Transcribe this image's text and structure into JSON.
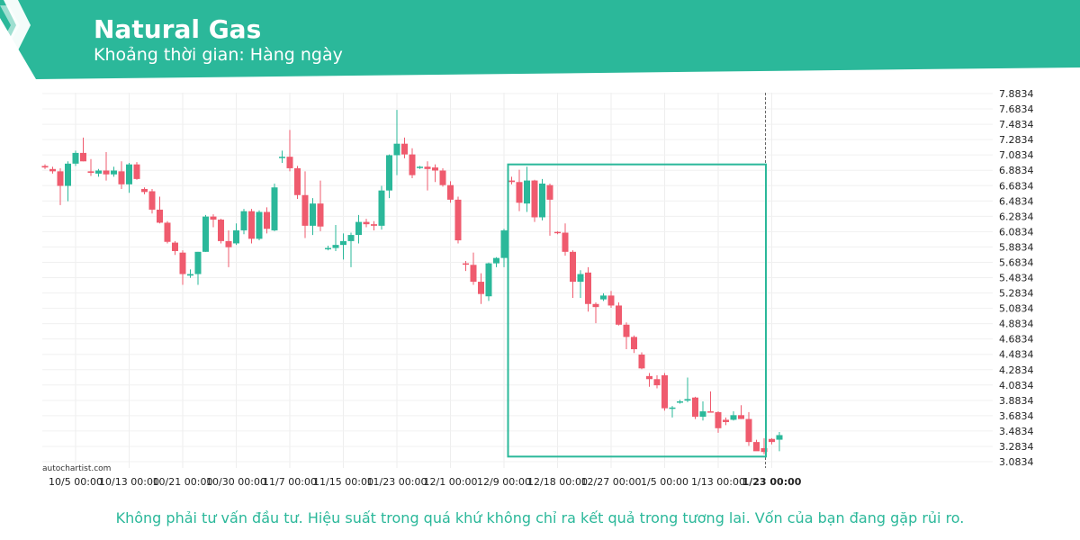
{
  "header": {
    "title": "Natural Gas",
    "subtitle": "Khoảng thời gian: Hàng ngày",
    "brand_color": "#2bb89a"
  },
  "footer": {
    "watermark": "autochartist.com",
    "disclaimer": "Không phải tư vấn đầu tư. Hiệu suất trong quá khứ không chỉ ra kết quả trong tương lai. Vốn của bạn đang gặp rủi ro."
  },
  "chart_data": {
    "type": "candlestick",
    "title": "Natural Gas",
    "up_color": "#2bb89a",
    "down_color": "#ef5b6e",
    "grid": true,
    "ylim": [
      3.0834,
      7.8834
    ],
    "y_ticks": [
      "7.8834",
      "7.6834",
      "7.4834",
      "7.2834",
      "7.0834",
      "6.8834",
      "6.6834",
      "6.4834",
      "6.2834",
      "6.0834",
      "5.8834",
      "5.6834",
      "5.4834",
      "5.2834",
      "5.0834",
      "4.8834",
      "4.6834",
      "4.4834",
      "4.2834",
      "4.0834",
      "3.8834",
      "3.6834",
      "3.4834",
      "3.2834",
      "3.0834"
    ],
    "x_ticks": [
      {
        "label": "10/5 00:00",
        "index": 4
      },
      {
        "label": "10/13 00:00",
        "index": 11
      },
      {
        "label": "10/21 00:00",
        "index": 18
      },
      {
        "label": "10/30 00:00",
        "index": 25
      },
      {
        "label": "11/7 00:00",
        "index": 32
      },
      {
        "label": "11/15 00:00",
        "index": 39
      },
      {
        "label": "11/23 00:00",
        "index": 46
      },
      {
        "label": "12/1 00:00",
        "index": 53
      },
      {
        "label": "12/9 00:00",
        "index": 60
      },
      {
        "label": "12/18 00:00",
        "index": 67
      },
      {
        "label": "12/27 00:00",
        "index": 74
      },
      {
        "label": "1/5 00:00",
        "index": 81
      },
      {
        "label": "1/13 00:00",
        "index": 88
      },
      {
        "label": "1/23 00:00",
        "index": 95,
        "bold": true
      }
    ],
    "pattern_box": {
      "start_index": 61,
      "end_index": 94,
      "high": 6.96,
      "low": 3.15
    },
    "current_index": 95,
    "candles": [
      {
        "o": 6.94,
        "h": 6.96,
        "l": 6.9,
        "c": 6.92
      },
      {
        "o": 6.9,
        "h": 6.93,
        "l": 6.84,
        "c": 6.87
      },
      {
        "o": 6.87,
        "h": 6.91,
        "l": 6.43,
        "c": 6.68
      },
      {
        "o": 6.68,
        "h": 7.0,
        "l": 6.48,
        "c": 6.97
      },
      {
        "o": 6.97,
        "h": 7.14,
        "l": 6.94,
        "c": 7.11
      },
      {
        "o": 7.11,
        "h": 7.31,
        "l": 7.0,
        "c": 7.0
      },
      {
        "o": 6.87,
        "h": 7.03,
        "l": 6.81,
        "c": 6.85
      },
      {
        "o": 6.84,
        "h": 6.9,
        "l": 6.8,
        "c": 6.88
      },
      {
        "o": 6.88,
        "h": 7.12,
        "l": 6.75,
        "c": 6.83
      },
      {
        "o": 6.83,
        "h": 6.93,
        "l": 6.8,
        "c": 6.88
      },
      {
        "o": 6.87,
        "h": 7.0,
        "l": 6.64,
        "c": 6.7
      },
      {
        "o": 6.7,
        "h": 6.98,
        "l": 6.59,
        "c": 6.96
      },
      {
        "o": 6.96,
        "h": 6.99,
        "l": 6.76,
        "c": 6.77
      },
      {
        "o": 6.64,
        "h": 6.66,
        "l": 6.57,
        "c": 6.6
      },
      {
        "o": 6.61,
        "h": 6.64,
        "l": 6.32,
        "c": 6.37
      },
      {
        "o": 6.37,
        "h": 6.54,
        "l": 6.19,
        "c": 6.2
      },
      {
        "o": 6.2,
        "h": 6.22,
        "l": 5.93,
        "c": 5.95
      },
      {
        "o": 5.94,
        "h": 5.96,
        "l": 5.78,
        "c": 5.83
      },
      {
        "o": 5.81,
        "h": 5.84,
        "l": 5.39,
        "c": 5.53
      },
      {
        "o": 5.51,
        "h": 5.59,
        "l": 5.48,
        "c": 5.53
      },
      {
        "o": 5.53,
        "h": 5.82,
        "l": 5.39,
        "c": 5.82
      },
      {
        "o": 5.82,
        "h": 6.3,
        "l": 5.82,
        "c": 6.28
      },
      {
        "o": 6.28,
        "h": 6.31,
        "l": 6.14,
        "c": 6.24
      },
      {
        "o": 6.24,
        "h": 6.25,
        "l": 5.93,
        "c": 5.96
      },
      {
        "o": 5.96,
        "h": 6.1,
        "l": 5.62,
        "c": 5.88
      },
      {
        "o": 5.93,
        "h": 6.19,
        "l": 5.91,
        "c": 6.1
      },
      {
        "o": 6.1,
        "h": 6.38,
        "l": 6.05,
        "c": 6.35
      },
      {
        "o": 6.35,
        "h": 6.38,
        "l": 5.93,
        "c": 5.99
      },
      {
        "o": 5.99,
        "h": 6.36,
        "l": 5.97,
        "c": 6.34
      },
      {
        "o": 6.34,
        "h": 6.4,
        "l": 6.06,
        "c": 6.12
      },
      {
        "o": 6.1,
        "h": 6.71,
        "l": 6.09,
        "c": 6.66
      },
      {
        "o": 7.05,
        "h": 7.14,
        "l": 6.98,
        "c": 7.06
      },
      {
        "o": 7.06,
        "h": 7.41,
        "l": 6.87,
        "c": 6.91
      },
      {
        "o": 6.91,
        "h": 6.94,
        "l": 6.51,
        "c": 6.56
      },
      {
        "o": 6.56,
        "h": 6.87,
        "l": 6.0,
        "c": 6.16
      },
      {
        "o": 6.16,
        "h": 6.52,
        "l": 6.04,
        "c": 6.45
      },
      {
        "o": 6.45,
        "h": 6.75,
        "l": 6.09,
        "c": 6.15
      },
      {
        "o": 5.86,
        "h": 5.9,
        "l": 5.84,
        "c": 5.87
      },
      {
        "o": 5.87,
        "h": 6.17,
        "l": 5.83,
        "c": 5.91
      },
      {
        "o": 5.91,
        "h": 6.06,
        "l": 5.72,
        "c": 5.96
      },
      {
        "o": 5.96,
        "h": 6.07,
        "l": 5.62,
        "c": 6.04
      },
      {
        "o": 6.04,
        "h": 6.3,
        "l": 5.93,
        "c": 6.21
      },
      {
        "o": 6.21,
        "h": 6.25,
        "l": 6.14,
        "c": 6.18
      },
      {
        "o": 6.18,
        "h": 6.22,
        "l": 6.1,
        "c": 6.16
      },
      {
        "o": 6.16,
        "h": 6.68,
        "l": 6.11,
        "c": 6.62
      },
      {
        "o": 6.62,
        "h": 7.09,
        "l": 6.52,
        "c": 7.08
      },
      {
        "o": 7.08,
        "h": 7.67,
        "l": 6.82,
        "c": 7.23
      },
      {
        "o": 7.23,
        "h": 7.31,
        "l": 7.04,
        "c": 7.09
      },
      {
        "o": 7.09,
        "h": 7.17,
        "l": 6.78,
        "c": 6.82
      },
      {
        "o": 6.92,
        "h": 6.94,
        "l": 6.9,
        "c": 6.93
      },
      {
        "o": 6.93,
        "h": 7.0,
        "l": 6.62,
        "c": 6.9
      },
      {
        "o": 6.92,
        "h": 6.96,
        "l": 6.73,
        "c": 6.88
      },
      {
        "o": 6.88,
        "h": 6.91,
        "l": 6.67,
        "c": 6.69
      },
      {
        "o": 6.69,
        "h": 6.74,
        "l": 6.46,
        "c": 6.5
      },
      {
        "o": 6.5,
        "h": 6.54,
        "l": 5.93,
        "c": 5.97
      },
      {
        "o": 5.67,
        "h": 5.7,
        "l": 5.57,
        "c": 5.66
      },
      {
        "o": 5.65,
        "h": 5.81,
        "l": 5.39,
        "c": 5.43
      },
      {
        "o": 5.43,
        "h": 5.54,
        "l": 5.14,
        "c": 5.27
      },
      {
        "o": 5.24,
        "h": 5.68,
        "l": 5.18,
        "c": 5.67
      },
      {
        "o": 5.67,
        "h": 5.75,
        "l": 5.62,
        "c": 5.74
      },
      {
        "o": 5.74,
        "h": 6.12,
        "l": 5.62,
        "c": 6.1
      },
      {
        "o": 6.75,
        "h": 6.8,
        "l": 6.7,
        "c": 6.73
      },
      {
        "o": 6.73,
        "h": 6.89,
        "l": 6.35,
        "c": 6.46
      },
      {
        "o": 6.45,
        "h": 6.93,
        "l": 6.34,
        "c": 6.75
      },
      {
        "o": 6.75,
        "h": 6.76,
        "l": 6.21,
        "c": 6.27
      },
      {
        "o": 6.27,
        "h": 6.77,
        "l": 6.23,
        "c": 6.71
      },
      {
        "o": 6.69,
        "h": 6.71,
        "l": 6.03,
        "c": 6.5
      },
      {
        "o": 6.08,
        "h": 6.09,
        "l": 6.05,
        "c": 6.07
      },
      {
        "o": 6.07,
        "h": 6.19,
        "l": 5.77,
        "c": 5.82
      },
      {
        "o": 5.82,
        "h": 5.84,
        "l": 5.22,
        "c": 5.43
      },
      {
        "o": 5.43,
        "h": 5.58,
        "l": 5.22,
        "c": 5.53
      },
      {
        "o": 5.55,
        "h": 5.62,
        "l": 5.04,
        "c": 5.14
      },
      {
        "o": 5.14,
        "h": 5.16,
        "l": 4.89,
        "c": 5.1
      },
      {
        "o": 5.2,
        "h": 5.28,
        "l": 5.18,
        "c": 5.25
      },
      {
        "o": 5.25,
        "h": 5.31,
        "l": 5.09,
        "c": 5.12
      },
      {
        "o": 5.12,
        "h": 5.16,
        "l": 4.86,
        "c": 4.87
      },
      {
        "o": 4.87,
        "h": 4.9,
        "l": 4.55,
        "c": 4.71
      },
      {
        "o": 4.71,
        "h": 4.73,
        "l": 4.5,
        "c": 4.55
      },
      {
        "o": 4.48,
        "h": 4.51,
        "l": 4.29,
        "c": 4.3
      },
      {
        "o": 4.2,
        "h": 4.24,
        "l": 4.06,
        "c": 4.16
      },
      {
        "o": 4.16,
        "h": 4.21,
        "l": 4.04,
        "c": 4.08
      },
      {
        "o": 4.21,
        "h": 4.24,
        "l": 3.75,
        "c": 3.78
      },
      {
        "o": 3.79,
        "h": 3.81,
        "l": 3.66,
        "c": 3.79
      },
      {
        "o": 3.87,
        "h": 3.89,
        "l": 3.84,
        "c": 3.87
      },
      {
        "o": 3.88,
        "h": 4.18,
        "l": 3.86,
        "c": 3.9
      },
      {
        "o": 3.92,
        "h": 3.93,
        "l": 3.64,
        "c": 3.67
      },
      {
        "o": 3.67,
        "h": 3.87,
        "l": 3.62,
        "c": 3.74
      },
      {
        "o": 3.74,
        "h": 4.0,
        "l": 3.74,
        "c": 3.73
      },
      {
        "o": 3.73,
        "h": 3.74,
        "l": 3.46,
        "c": 3.52
      },
      {
        "o": 3.63,
        "h": 3.66,
        "l": 3.56,
        "c": 3.6
      },
      {
        "o": 3.63,
        "h": 3.74,
        "l": 3.62,
        "c": 3.69
      },
      {
        "o": 3.69,
        "h": 3.82,
        "l": 3.64,
        "c": 3.64
      },
      {
        "o": 3.64,
        "h": 3.73,
        "l": 3.29,
        "c": 3.34
      },
      {
        "o": 3.34,
        "h": 3.37,
        "l": 3.23,
        "c": 3.22
      },
      {
        "o": 3.26,
        "h": 3.39,
        "l": 3.18,
        "c": 3.21
      },
      {
        "o": 3.38,
        "h": 3.39,
        "l": 3.31,
        "c": 3.34
      },
      {
        "o": 3.37,
        "h": 3.47,
        "l": 3.22,
        "c": 3.43
      }
    ]
  }
}
